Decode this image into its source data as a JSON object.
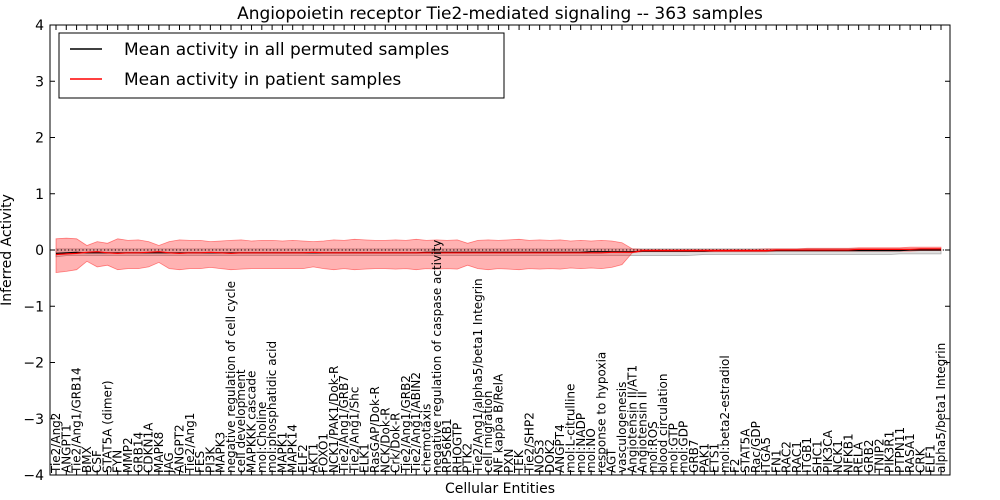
{
  "chart_data": {
    "type": "line",
    "title": "Angiopoietin receptor Tie2-mediated signaling -- 363 samples",
    "xlabel": "Cellular Entities",
    "ylabel": "Inferred Activity",
    "ylim": [
      -4,
      4
    ],
    "yticks": [
      -4,
      -3,
      -2,
      -1,
      0,
      1,
      2,
      3,
      4
    ],
    "ytick_labels": [
      "−4",
      "−3",
      "−2",
      "−1",
      "0",
      "1",
      "2",
      "3",
      "4"
    ],
    "grid": false,
    "legend_position": "top-left",
    "categories": [
      "Tie2/Ang2",
      "ANGPT1",
      "Tie2/Ang1/GRB14",
      "BMX",
      "CSF",
      "STAT5A (dimer)",
      "FYN",
      "MMP2",
      "GRB14",
      "CDKN1A",
      "MAPK8",
      "JAG",
      "ANGPT2",
      "Tie2/Ang1",
      "FES",
      "PI3K",
      "MAPK3",
      "negative regulation of cell cycle",
      "cell development",
      "MAPKKK cascade",
      "mol:Choline",
      "mol:phosphatidic acid",
      "MAPK1",
      "MAPK14",
      "ELF2",
      "AKT1",
      "FOXO1",
      "NCK1/PAK1/Dok-R",
      "Tie2/Ang1/GRB7",
      "Tie2/Ang1/Shc",
      "ELK1",
      "RasGAP/Dok-R",
      "NCK/Dok-R",
      "Crk/Dok-R",
      "Tie2/Ang1/GRB2",
      "Tie2/Ang1/ABIN2",
      "chemotaxis",
      "negative regulation of caspase activity",
      "RPS6KB1",
      "RHOGTP",
      "PTK2",
      "Tie2/Ang1/alpha5/beta1 Integrin",
      "cell migration",
      "NF kappa B/RelA",
      "PXN",
      "TEK",
      "Tie2/SHP2",
      "NOS3",
      "DOK2",
      "ANGPT4",
      "mol:L-citrulline",
      "mol:NADP",
      "mol:NO",
      "response to hypoxia",
      "AGT",
      "vasculogenesis",
      "Angiotensin II/AT1",
      "Angiotensin II",
      "mol:ROS",
      "blood circulation",
      "mol:GTP",
      "mol:GDP",
      "GRB7",
      "PAK1",
      "ETS1",
      "mol:beta2-estradiol",
      "F2",
      "STAT5A",
      "Rac/GDP",
      "ITGA5",
      "FN1",
      "RAC2",
      "RAC1",
      "ITGB1",
      "SHC1",
      "PIK3CA",
      "NCK1",
      "NFKB1",
      "RELA",
      "GRB2",
      "TNIP2",
      "PIK3R1",
      "PTPN11",
      "RASA1",
      "CRK",
      "ELF1",
      "alpha5/beta1 Integrin"
    ],
    "series": [
      {
        "name": "Mean activity in all permuted samples",
        "color": "#000000",
        "values": [
          -0.06,
          -0.05,
          -0.04,
          -0.05,
          -0.05,
          -0.05,
          -0.05,
          -0.05,
          -0.05,
          -0.05,
          -0.05,
          -0.05,
          -0.05,
          -0.05,
          -0.05,
          -0.05,
          -0.05,
          -0.05,
          -0.05,
          -0.05,
          -0.05,
          -0.05,
          -0.05,
          -0.05,
          -0.05,
          -0.05,
          -0.05,
          -0.05,
          -0.05,
          -0.05,
          -0.05,
          -0.05,
          -0.05,
          -0.05,
          -0.05,
          -0.05,
          -0.04,
          -0.04,
          -0.04,
          -0.04,
          -0.04,
          -0.04,
          -0.04,
          -0.04,
          -0.04,
          -0.04,
          -0.04,
          -0.04,
          -0.04,
          -0.04,
          -0.04,
          -0.04,
          -0.03,
          -0.03,
          -0.03,
          -0.03,
          -0.03,
          -0.02,
          -0.02,
          -0.02,
          -0.02,
          -0.02,
          -0.02,
          -0.02,
          -0.01,
          -0.01,
          -0.01,
          -0.01,
          -0.01,
          -0.01,
          -0.01,
          -0.01,
          -0.01,
          -0.01,
          -0.01,
          -0.01,
          -0.01,
          -0.01,
          -0.01,
          -0.01,
          -0.01,
          -0.01,
          -0.01,
          0.0,
          0.0,
          0.0,
          0.0
        ]
      },
      {
        "name": "Mean activity in patient samples",
        "color": "#ff0000",
        "values": [
          -0.08,
          -0.07,
          -0.06,
          -0.04,
          -0.03,
          -0.05,
          -0.06,
          -0.05,
          -0.05,
          -0.04,
          -0.03,
          -0.05,
          -0.06,
          -0.05,
          -0.05,
          -0.04,
          -0.05,
          -0.06,
          -0.05,
          -0.05,
          -0.05,
          -0.05,
          -0.05,
          -0.05,
          -0.05,
          -0.04,
          -0.05,
          -0.05,
          -0.05,
          -0.05,
          -0.05,
          -0.05,
          -0.05,
          -0.05,
          -0.05,
          -0.05,
          -0.05,
          -0.05,
          -0.05,
          -0.05,
          -0.05,
          -0.05,
          -0.05,
          -0.05,
          -0.05,
          -0.05,
          -0.05,
          -0.05,
          -0.05,
          -0.05,
          -0.05,
          -0.05,
          -0.05,
          -0.05,
          -0.04,
          -0.04,
          -0.04,
          -0.01,
          -0.01,
          -0.01,
          -0.01,
          -0.01,
          -0.01,
          -0.01,
          -0.01,
          -0.01,
          -0.01,
          -0.01,
          -0.01,
          -0.01,
          0.0,
          0.0,
          0.0,
          0.0,
          0.0,
          0.0,
          0.0,
          0.0,
          0.01,
          0.01,
          0.01,
          0.01,
          0.01,
          0.01,
          0.02,
          0.02,
          0.02
        ]
      }
    ],
    "patient_band_upper": [
      0.2,
      0.21,
      0.2,
      0.08,
      0.15,
      0.12,
      0.2,
      0.17,
      0.18,
      0.15,
      0.08,
      0.15,
      0.18,
      0.17,
      0.17,
      0.15,
      0.16,
      0.17,
      0.18,
      0.16,
      0.17,
      0.17,
      0.16,
      0.17,
      0.16,
      0.15,
      0.16,
      0.18,
      0.17,
      0.19,
      0.18,
      0.17,
      0.17,
      0.18,
      0.17,
      0.19,
      0.17,
      0.18,
      0.17,
      0.18,
      0.12,
      0.17,
      0.18,
      0.17,
      0.18,
      0.19,
      0.17,
      0.18,
      0.17,
      0.18,
      0.16,
      0.17,
      0.16,
      0.17,
      0.16,
      0.13,
      0.02,
      0.01,
      0.01,
      0.01,
      0.01,
      0.01,
      0.01,
      0.01,
      0.01,
      0.01,
      0.01,
      0.01,
      0.01,
      0.02,
      0.02,
      0.02,
      0.02,
      0.03,
      0.03,
      0.03,
      0.03,
      0.03,
      0.04,
      0.04,
      0.04,
      0.04,
      0.04,
      0.05,
      0.05,
      0.05,
      0.05
    ],
    "patient_band_lower": [
      -0.4,
      -0.38,
      -0.35,
      -0.2,
      -0.3,
      -0.27,
      -0.35,
      -0.33,
      -0.33,
      -0.3,
      -0.22,
      -0.33,
      -0.35,
      -0.33,
      -0.33,
      -0.31,
      -0.33,
      -0.35,
      -0.34,
      -0.33,
      -0.33,
      -0.33,
      -0.33,
      -0.33,
      -0.33,
      -0.3,
      -0.33,
      -0.35,
      -0.33,
      -0.35,
      -0.34,
      -0.33,
      -0.33,
      -0.34,
      -0.33,
      -0.35,
      -0.33,
      -0.34,
      -0.33,
      -0.34,
      -0.27,
      -0.33,
      -0.35,
      -0.33,
      -0.34,
      -0.35,
      -0.33,
      -0.34,
      -0.33,
      -0.34,
      -0.32,
      -0.33,
      -0.32,
      -0.33,
      -0.31,
      -0.26,
      -0.05,
      -0.03,
      -0.03,
      -0.03,
      -0.03,
      -0.03,
      -0.03,
      -0.03,
      -0.03,
      -0.03,
      -0.03,
      -0.03,
      -0.03,
      -0.03,
      -0.02,
      -0.02,
      -0.02,
      -0.02,
      -0.02,
      -0.02,
      -0.02,
      -0.02,
      -0.02,
      -0.02,
      -0.02,
      -0.02,
      -0.02,
      -0.02,
      -0.01,
      -0.01,
      -0.01
    ],
    "permuted_band_upper": [
      0.02,
      0.02,
      0.02,
      0.02,
      0.02,
      0.02,
      0.02,
      0.02,
      0.02,
      0.02,
      0.02,
      0.02,
      0.02,
      0.02,
      0.02,
      0.02,
      0.02,
      0.02,
      0.02,
      0.02,
      0.02,
      0.02,
      0.02,
      0.02,
      0.02,
      0.02,
      0.02,
      0.02,
      0.02,
      0.02,
      0.02,
      0.02,
      0.02,
      0.02,
      0.02,
      0.02,
      0.02,
      0.02,
      0.02,
      0.02,
      0.02,
      0.02,
      0.02,
      0.02,
      0.02,
      0.02,
      0.02,
      0.02,
      0.02,
      0.02,
      0.02,
      0.02,
      0.02,
      0.02,
      0.02,
      0.02,
      0.02,
      0.02,
      0.02,
      0.02,
      0.02,
      0.02,
      0.02,
      0.02,
      0.02,
      0.02,
      0.02,
      0.02,
      0.02,
      0.02,
      0.02,
      0.02,
      0.02,
      0.02,
      0.02,
      0.02,
      0.02,
      0.02,
      0.02,
      0.02,
      0.02,
      0.02,
      0.02,
      0.02,
      0.02,
      0.02,
      0.02
    ],
    "permuted_band_lower": [
      -0.12,
      -0.1,
      -0.1,
      -0.1,
      -0.1,
      -0.1,
      -0.1,
      -0.1,
      -0.1,
      -0.1,
      -0.1,
      -0.1,
      -0.1,
      -0.1,
      -0.1,
      -0.1,
      -0.1,
      -0.1,
      -0.1,
      -0.1,
      -0.1,
      -0.1,
      -0.1,
      -0.1,
      -0.1,
      -0.1,
      -0.1,
      -0.1,
      -0.1,
      -0.1,
      -0.1,
      -0.1,
      -0.1,
      -0.1,
      -0.1,
      -0.1,
      -0.1,
      -0.1,
      -0.1,
      -0.1,
      -0.1,
      -0.1,
      -0.1,
      -0.1,
      -0.1,
      -0.1,
      -0.1,
      -0.1,
      -0.1,
      -0.1,
      -0.1,
      -0.1,
      -0.1,
      -0.1,
      -0.1,
      -0.1,
      -0.1,
      -0.1,
      -0.1,
      -0.1,
      -0.1,
      -0.1,
      -0.09,
      -0.08,
      -0.08,
      -0.08,
      -0.08,
      -0.08,
      -0.08,
      -0.08,
      -0.08,
      -0.08,
      -0.08,
      -0.08,
      -0.08,
      -0.08,
      -0.08,
      -0.08,
      -0.08,
      -0.08,
      -0.08,
      -0.08,
      -0.07,
      -0.07,
      -0.07,
      -0.07,
      -0.07
    ]
  }
}
